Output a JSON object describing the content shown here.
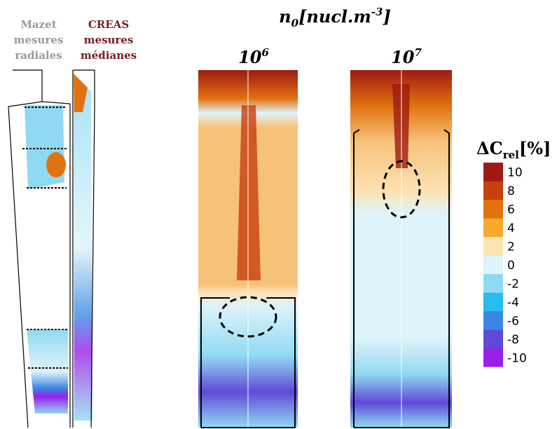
{
  "labels": {
    "left": [
      "Mazet",
      "mesures",
      "radiales"
    ],
    "right": [
      "CREAS",
      "mesures",
      "médianes"
    ]
  },
  "title": {
    "base": "n",
    "sub": "0",
    "main": "[nucl.m",
    "sup": "-3",
    "end": "]"
  },
  "panels": [
    {
      "base": "10",
      "sup": "6"
    },
    {
      "base": "10",
      "sup": "7"
    }
  ],
  "colorbar": {
    "label": {
      "base": "ΔC",
      "sub": "rel",
      "end": "[%]"
    },
    "ticks": [
      10,
      8,
      6,
      4,
      2,
      0,
      -2,
      -4,
      -6,
      -8,
      -10
    ],
    "colors": [
      "#9e1a12",
      "#c8400e",
      "#e2720f",
      "#f6a92a",
      "#fde2b4",
      "#def3fa",
      "#8fdaf2",
      "#27bdec",
      "#3a86e2",
      "#6149d8",
      "#9a1fe8"
    ]
  }
}
